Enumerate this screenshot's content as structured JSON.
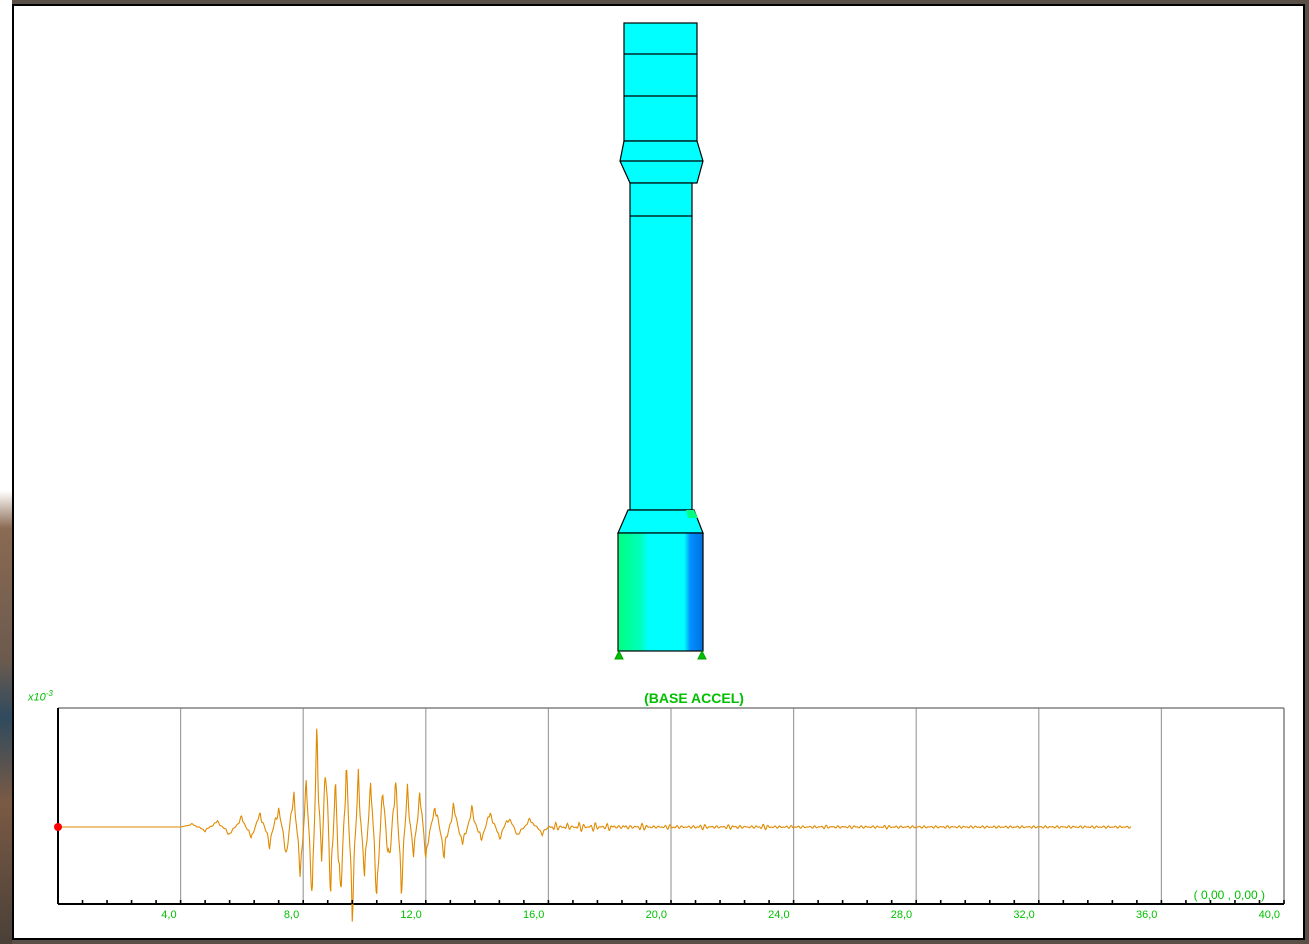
{
  "plot": {
    "title": "(BASE ACCEL)",
    "scale_prefix": "x10",
    "scale_exponent": "-3",
    "coordinate_readout": "( 0,00 , 0,00 )"
  },
  "colors": {
    "member_fill": "#00ffff",
    "member_stroke": "#000000",
    "stress_green": "#00ff80",
    "stress_blue": "#0090ff",
    "support": "#00c000",
    "trace": "#e08a00",
    "grid": "#a0a0a0",
    "marker": "#ff0000",
    "label": "#00c000"
  },
  "chart_data": {
    "type": "line",
    "title": "(BASE ACCEL)",
    "xlabel": "",
    "ylabel": "",
    "xlim": [
      0,
      40
    ],
    "x_tick_labels": [
      "4,0",
      "8,0",
      "12,0",
      "16,0",
      "20,0",
      "24,0",
      "28,0",
      "32,0",
      "36,0",
      "40,0"
    ],
    "x_tick_values": [
      4,
      8,
      12,
      16,
      20,
      24,
      28,
      32,
      36,
      40
    ],
    "series": [
      {
        "values": [
          [
            0,
            0
          ],
          [
            4.0,
            0
          ],
          [
            4.4,
            0.03
          ],
          [
            4.8,
            -0.04
          ],
          [
            5.2,
            0.06
          ],
          [
            5.6,
            -0.08
          ],
          [
            6.0,
            0.1
          ],
          [
            6.3,
            -0.12
          ],
          [
            6.6,
            0.15
          ],
          [
            6.9,
            -0.18
          ],
          [
            7.2,
            0.22
          ],
          [
            7.45,
            -0.3
          ],
          [
            7.7,
            0.4
          ],
          [
            7.9,
            -0.55
          ],
          [
            8.1,
            0.45
          ],
          [
            8.3,
            -0.7
          ],
          [
            8.45,
            0.98
          ],
          [
            8.6,
            -0.4
          ],
          [
            8.75,
            0.8
          ],
          [
            8.9,
            -0.85
          ],
          [
            9.05,
            0.6
          ],
          [
            9.2,
            -0.95
          ],
          [
            9.4,
            0.65
          ],
          [
            9.6,
            -0.8
          ],
          [
            9.8,
            0.55
          ],
          [
            10.0,
            -0.6
          ],
          [
            10.2,
            0.5
          ],
          [
            10.4,
            -0.7
          ],
          [
            10.6,
            0.45
          ],
          [
            10.8,
            -0.5
          ],
          [
            11.0,
            0.55
          ],
          [
            11.2,
            -0.6
          ],
          [
            11.4,
            0.4
          ],
          [
            11.6,
            -0.35
          ],
          [
            11.8,
            0.38
          ],
          [
            12.0,
            -0.3
          ],
          [
            12.3,
            0.25
          ],
          [
            12.6,
            -0.28
          ],
          [
            12.9,
            0.22
          ],
          [
            13.2,
            -0.2
          ],
          [
            13.5,
            0.18
          ],
          [
            13.8,
            -0.15
          ],
          [
            14.1,
            0.16
          ],
          [
            14.4,
            -0.12
          ],
          [
            14.7,
            0.11
          ],
          [
            15.0,
            -0.09
          ],
          [
            15.4,
            0.08
          ],
          [
            15.8,
            -0.07
          ],
          [
            16.2,
            0.06
          ],
          [
            16.6,
            -0.05
          ],
          [
            17.0,
            0.06
          ],
          [
            17.5,
            -0.05
          ],
          [
            18.0,
            0.05
          ],
          [
            18.5,
            -0.04
          ],
          [
            19.0,
            0.04
          ],
          [
            20.0,
            -0.03
          ],
          [
            21.0,
            0.03
          ],
          [
            22.0,
            -0.03
          ],
          [
            23.0,
            0.03
          ],
          [
            24.0,
            -0.02
          ],
          [
            25.0,
            0.02
          ],
          [
            26.0,
            -0.02
          ],
          [
            27.0,
            0.02
          ],
          [
            28.0,
            -0.015
          ],
          [
            29.0,
            0.015
          ],
          [
            30.0,
            -0.015
          ],
          [
            31.0,
            0.012
          ],
          [
            32.0,
            -0.012
          ],
          [
            33.0,
            0.01
          ],
          [
            34.0,
            -0.01
          ],
          [
            35.0,
            0
          ]
        ]
      }
    ],
    "grid": true
  }
}
